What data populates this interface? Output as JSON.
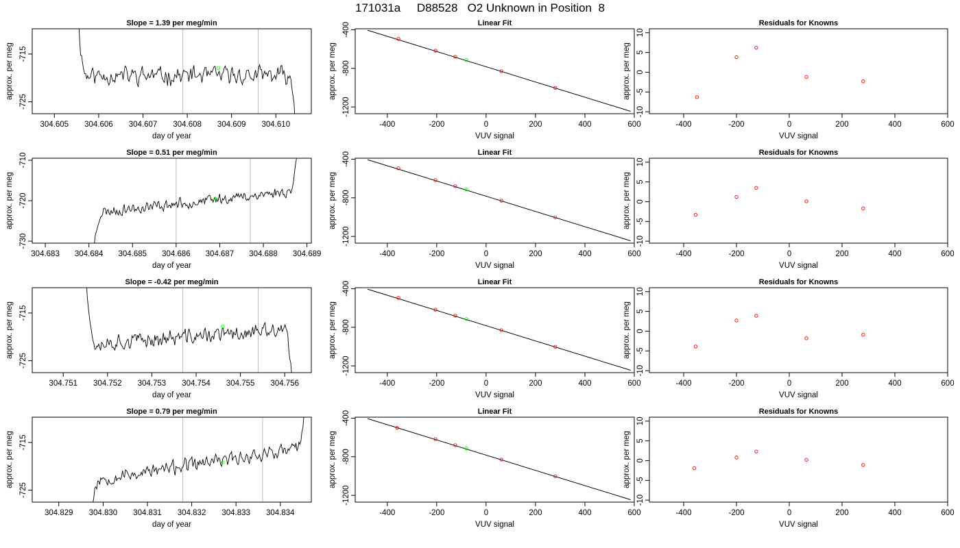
{
  "page": {
    "title": "171031a     D88528   O2 Unknown in Position  8"
  },
  "chart_data": [
    {
      "type": "line",
      "title": "Slope =  1.39  per meg/min",
      "xlabel": "day of year",
      "ylabel": "approx. per meg",
      "xlim": [
        304.6045,
        304.6108
      ],
      "ylim": [
        -727.5,
        -709.7
      ],
      "xticks": [
        304.605,
        304.606,
        304.607,
        304.608,
        304.609,
        304.61
      ],
      "xtick_labels": [
        "304.605",
        "304.606",
        "304.607",
        "304.608",
        "304.609",
        "304.610"
      ],
      "yticks": [
        -715,
        -725
      ],
      "ytick_labels": [
        "-715",
        "-725"
      ],
      "vlines": [
        304.6079,
        304.6096
      ],
      "x_start": 304.6055,
      "x_end": 304.6105,
      "ts_seed": 11,
      "level_start": -719.5,
      "level_end": -719.5,
      "start_value": -702,
      "end_value": -735,
      "noise": 2.2,
      "marker": {
        "x": 304.6087,
        "y": -717.9,
        "color": "#00ff00"
      },
      "series_color": "#000000"
    },
    {
      "type": "scatter",
      "title": "Linear Fit",
      "xlabel": "VUV signal",
      "ylabel": "approx. per meg",
      "xlim": [
        -530,
        600
      ],
      "ylim": [
        -1270,
        -390
      ],
      "xticks": [
        -400,
        -200,
        0,
        200,
        400,
        600
      ],
      "xtick_labels": [
        "-400",
        "-200",
        "0",
        "200",
        "400",
        "600"
      ],
      "yticks": [
        -400,
        -800,
        -1200
      ],
      "ytick_labels": [
        "-400",
        "-800",
        "-1200"
      ],
      "fit_line": {
        "x": [
          -480,
          585
        ],
        "y": [
          -405,
          -1245
        ]
      },
      "points": [
        {
          "x": -355,
          "y": -495,
          "color": "#ff0000"
        },
        {
          "x": -205,
          "y": -617,
          "color": "#ff0000"
        },
        {
          "x": -125,
          "y": -680,
          "color": "#ff0000"
        },
        {
          "x": 62,
          "y": -830,
          "color": "#ff0000"
        },
        {
          "x": 280,
          "y": -1002,
          "color": "#ff0000"
        },
        {
          "x": -80,
          "y": -715,
          "color": "#00ff00"
        }
      ]
    },
    {
      "type": "scatter",
      "title": "Residuals for Knowns",
      "xlabel": "VUV signal",
      "ylabel": "approx. per meg",
      "xlim": [
        -530,
        600
      ],
      "ylim": [
        -10.5,
        11
      ],
      "xticks": [
        -400,
        -200,
        0,
        200,
        400,
        600
      ],
      "xtick_labels": [
        "-400",
        "-200",
        "0",
        "200",
        "400",
        "600"
      ],
      "yticks": [
        -10,
        -5,
        0,
        5,
        10
      ],
      "ytick_labels": [
        "-10",
        "-5",
        "0",
        "5",
        "10"
      ],
      "points": [
        {
          "x": -350,
          "y": -6.3,
          "color": "#ff0000"
        },
        {
          "x": -200,
          "y": 3.8,
          "color": "#ff0000"
        },
        {
          "x": -125,
          "y": 6.2,
          "color": "#ff0000"
        },
        {
          "x": 65,
          "y": -1.2,
          "color": "#ff0000"
        },
        {
          "x": 280,
          "y": -2.3,
          "color": "#ff0000"
        }
      ]
    },
    {
      "type": "line",
      "title": "Slope =  0.51  per meg/min",
      "xlabel": "day of year",
      "ylabel": "approx. per meg",
      "xlim": [
        304.6827,
        304.6891
      ],
      "ylim": [
        -730.5,
        -709.5
      ],
      "xticks": [
        304.683,
        304.684,
        304.685,
        304.686,
        304.687,
        304.688,
        304.689
      ],
      "xtick_labels": [
        "304.683",
        "304.684",
        "304.685",
        "304.686",
        "304.687",
        "304.688",
        "304.689"
      ],
      "yticks": [
        -710,
        -720,
        -730
      ],
      "ytick_labels": [
        "-710",
        "-720",
        "-730"
      ],
      "vlines": [
        304.686,
        304.6877
      ],
      "x_start": 304.6841,
      "x_end": 304.6888,
      "ts_seed": 23,
      "level_start": -723,
      "level_end": -717.5,
      "start_value": -733,
      "end_value": -706,
      "noise": 1.6,
      "marker": {
        "x": 304.6869,
        "y": -719.5,
        "color": "#00ff00"
      },
      "series_color": "#000000"
    },
    {
      "type": "scatter",
      "title": "Linear Fit",
      "xlabel": "VUV signal",
      "ylabel": "approx. per meg",
      "xlim": [
        -530,
        600
      ],
      "ylim": [
        -1270,
        -390
      ],
      "xticks": [
        -400,
        -200,
        0,
        200,
        400,
        600
      ],
      "xtick_labels": [
        "-400",
        "-200",
        "0",
        "200",
        "400",
        "600"
      ],
      "yticks": [
        -400,
        -800,
        -1200
      ],
      "ytick_labels": [
        "-400",
        "-800",
        "-1200"
      ],
      "fit_line": {
        "x": [
          -480,
          585
        ],
        "y": [
          -405,
          -1245
        ]
      },
      "points": [
        {
          "x": -355,
          "y": -495,
          "color": "#ff0000"
        },
        {
          "x": -205,
          "y": -617,
          "color": "#ff0000"
        },
        {
          "x": -125,
          "y": -680,
          "color": "#ff0000"
        },
        {
          "x": 62,
          "y": -830,
          "color": "#ff0000"
        },
        {
          "x": 280,
          "y": -1002,
          "color": "#ff0000"
        },
        {
          "x": -80,
          "y": -715,
          "color": "#00ff00"
        }
      ]
    },
    {
      "type": "scatter",
      "title": "Residuals for Knowns",
      "xlabel": "VUV signal",
      "ylabel": "approx. per meg",
      "xlim": [
        -530,
        600
      ],
      "ylim": [
        -10.5,
        11
      ],
      "xticks": [
        -400,
        -200,
        0,
        200,
        400,
        600
      ],
      "xtick_labels": [
        "-400",
        "-200",
        "0",
        "200",
        "400",
        "600"
      ],
      "yticks": [
        -10,
        -5,
        0,
        5,
        10
      ],
      "ytick_labels": [
        "-10",
        "-5",
        "0",
        "5",
        "10"
      ],
      "points": [
        {
          "x": -355,
          "y": -3.3,
          "color": "#ff0000"
        },
        {
          "x": -200,
          "y": 1.2,
          "color": "#ff0000"
        },
        {
          "x": -125,
          "y": 3.5,
          "color": "#ff0000"
        },
        {
          "x": 65,
          "y": 0.1,
          "color": "#ff0000"
        },
        {
          "x": 280,
          "y": -1.7,
          "color": "#ff0000"
        }
      ]
    },
    {
      "type": "line",
      "title": "Slope =  -0.42  per meg/min",
      "xlabel": "day of year",
      "ylabel": "approx. per meg",
      "xlim": [
        304.7503,
        304.7566
      ],
      "ylim": [
        -727.5,
        -709.7
      ],
      "xticks": [
        304.751,
        304.752,
        304.753,
        304.754,
        304.755,
        304.756
      ],
      "xtick_labels": [
        "304.751",
        "304.752",
        "304.753",
        "304.754",
        "304.755",
        "304.756"
      ],
      "yticks": [
        -715,
        -725
      ],
      "ytick_labels": [
        "-715",
        "-725"
      ],
      "vlines": [
        304.7537,
        304.7554
      ],
      "x_start": 304.7515,
      "x_end": 304.7562,
      "ts_seed": 37,
      "level_start": -721.5,
      "level_end": -718.5,
      "start_value": -703,
      "end_value": -735,
      "noise": 2.0,
      "marker": {
        "x": 304.7546,
        "y": -717.8,
        "color": "#00ff00"
      },
      "series_color": "#000000"
    },
    {
      "type": "scatter",
      "title": "Linear Fit",
      "xlabel": "VUV signal",
      "ylabel": "approx. per meg",
      "xlim": [
        -530,
        600
      ],
      "ylim": [
        -1270,
        -390
      ],
      "xticks": [
        -400,
        -200,
        0,
        200,
        400,
        600
      ],
      "xtick_labels": [
        "-400",
        "-200",
        "0",
        "200",
        "400",
        "600"
      ],
      "yticks": [
        -400,
        -800,
        -1200
      ],
      "ytick_labels": [
        "-400",
        "-800",
        "-1200"
      ],
      "fit_line": {
        "x": [
          -480,
          585
        ],
        "y": [
          -405,
          -1245
        ]
      },
      "points": [
        {
          "x": -355,
          "y": -495,
          "color": "#ff0000"
        },
        {
          "x": -205,
          "y": -617,
          "color": "#ff0000"
        },
        {
          "x": -125,
          "y": -680,
          "color": "#ff0000"
        },
        {
          "x": 62,
          "y": -830,
          "color": "#ff0000"
        },
        {
          "x": 280,
          "y": -1002,
          "color": "#ff0000"
        },
        {
          "x": -80,
          "y": -715,
          "color": "#00ff00"
        }
      ]
    },
    {
      "type": "scatter",
      "title": "Residuals for Knowns",
      "xlabel": "VUV signal",
      "ylabel": "approx. per meg",
      "xlim": [
        -530,
        600
      ],
      "ylim": [
        -10.5,
        11
      ],
      "xticks": [
        -400,
        -200,
        0,
        200,
        400,
        600
      ],
      "xtick_labels": [
        "-400",
        "-200",
        "0",
        "200",
        "400",
        "600"
      ],
      "yticks": [
        -10,
        -5,
        0,
        5,
        10
      ],
      "ytick_labels": [
        "-10",
        "-5",
        "0",
        "5",
        "10"
      ],
      "points": [
        {
          "x": -355,
          "y": -3.9,
          "color": "#ff0000"
        },
        {
          "x": -200,
          "y": 2.7,
          "color": "#ff0000"
        },
        {
          "x": -125,
          "y": 3.9,
          "color": "#ff0000"
        },
        {
          "x": 65,
          "y": -1.8,
          "color": "#ff0000"
        },
        {
          "x": 280,
          "y": -0.9,
          "color": "#ff0000"
        }
      ]
    },
    {
      "type": "line",
      "title": "Slope =  0.79  per meg/min",
      "xlabel": "day of year",
      "ylabel": "approx. per meg",
      "xlim": [
        304.8284,
        304.8347
      ],
      "ylim": [
        -727.5,
        -709.7
      ],
      "xticks": [
        304.829,
        304.83,
        304.831,
        304.832,
        304.833,
        304.834
      ],
      "xtick_labels": [
        "304.829",
        "304.830",
        "304.831",
        "304.832",
        "304.833",
        "304.834"
      ],
      "yticks": [
        -715,
        -725
      ],
      "ytick_labels": [
        "-715",
        "-725"
      ],
      "vlines": [
        304.8318,
        304.8336
      ],
      "x_start": 304.8297,
      "x_end": 304.8346,
      "ts_seed": 53,
      "level_start": -723,
      "level_end": -716,
      "start_value": -732,
      "end_value": -704,
      "noise": 1.7,
      "marker": {
        "x": 304.8327,
        "y": -719.2,
        "color": "#00ff00"
      },
      "series_color": "#000000"
    },
    {
      "type": "scatter",
      "title": "Linear Fit",
      "xlabel": "VUV signal",
      "ylabel": "approx. per meg",
      "xlim": [
        -530,
        600
      ],
      "ylim": [
        -1270,
        -390
      ],
      "xticks": [
        -400,
        -200,
        0,
        200,
        400,
        600
      ],
      "xtick_labels": [
        "-400",
        "-200",
        "0",
        "200",
        "400",
        "600"
      ],
      "yticks": [
        -400,
        -800,
        -1200
      ],
      "ytick_labels": [
        "-400",
        "-800",
        "-1200"
      ],
      "fit_line": {
        "x": [
          -480,
          585
        ],
        "y": [
          -405,
          -1245
        ]
      },
      "points": [
        {
          "x": -360,
          "y": -500,
          "color": "#ff0000"
        },
        {
          "x": -205,
          "y": -617,
          "color": "#ff0000"
        },
        {
          "x": -125,
          "y": -680,
          "color": "#ff0000"
        },
        {
          "x": 62,
          "y": -830,
          "color": "#ff0000"
        },
        {
          "x": 280,
          "y": -1002,
          "color": "#ff0000"
        },
        {
          "x": -80,
          "y": -715,
          "color": "#00ff00"
        }
      ]
    },
    {
      "type": "scatter",
      "title": "Residuals for Knowns",
      "xlabel": "VUV signal",
      "ylabel": "approx. per meg",
      "xlim": [
        -530,
        600
      ],
      "ylim": [
        -10.5,
        11
      ],
      "xticks": [
        -400,
        -200,
        0,
        200,
        400,
        600
      ],
      "xtick_labels": [
        "-400",
        "-200",
        "0",
        "200",
        "400",
        "600"
      ],
      "yticks": [
        -10,
        -5,
        0,
        5,
        10
      ],
      "ytick_labels": [
        "-10",
        "-5",
        "0",
        "5",
        "10"
      ],
      "points": [
        {
          "x": -360,
          "y": -1.9,
          "color": "#ff0000"
        },
        {
          "x": -200,
          "y": 0.8,
          "color": "#ff0000"
        },
        {
          "x": -125,
          "y": 2.3,
          "color": "#ff0000"
        },
        {
          "x": 65,
          "y": 0.2,
          "color": "#ff0000"
        },
        {
          "x": 280,
          "y": -1.1,
          "color": "#ff0000"
        }
      ]
    }
  ]
}
